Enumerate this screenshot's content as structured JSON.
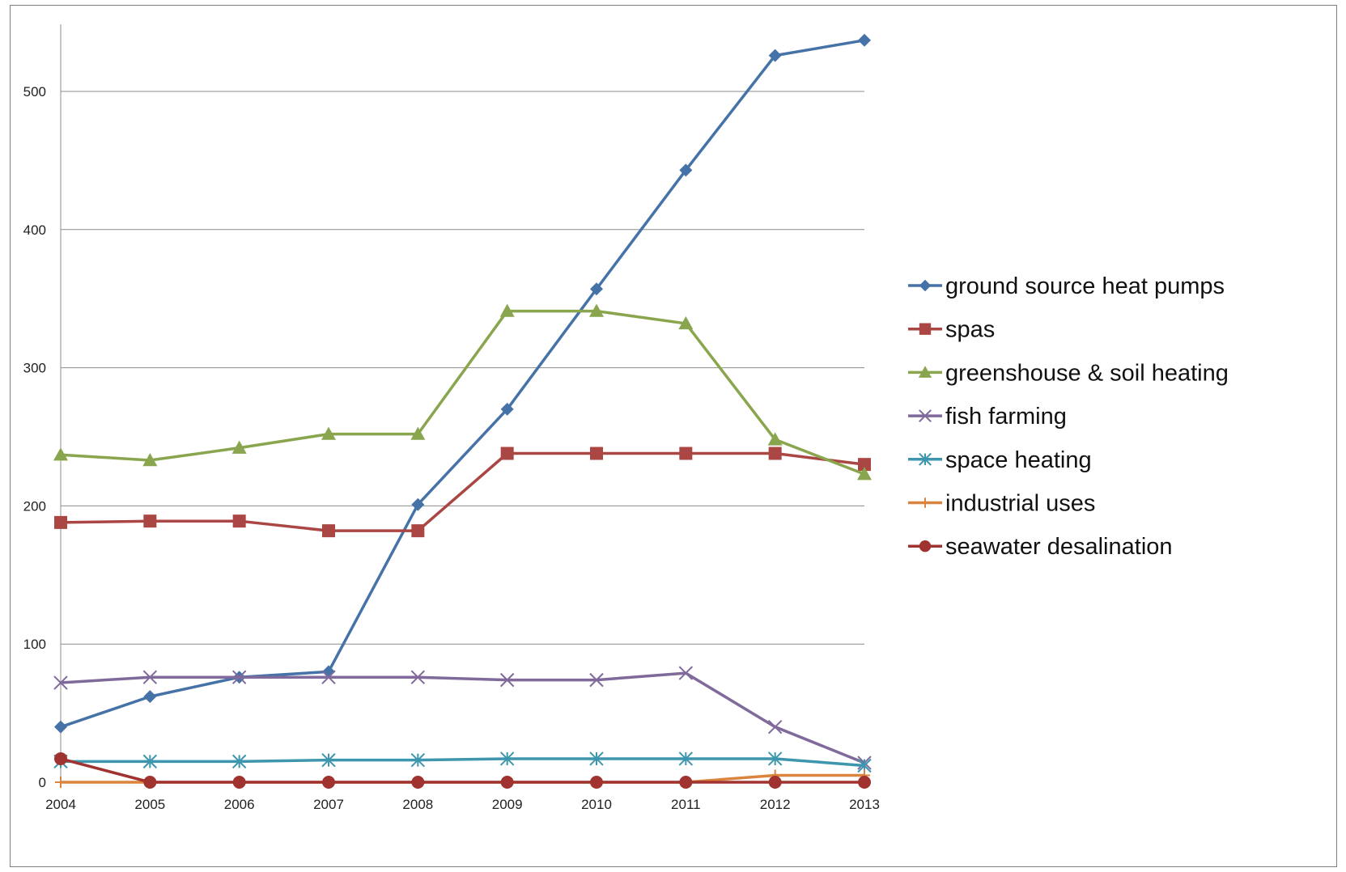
{
  "chart_data": {
    "type": "line",
    "title": "",
    "xlabel": "",
    "ylabel": "",
    "x": [
      "2004",
      "2005",
      "2006",
      "2007",
      "2008",
      "2009",
      "2010",
      "2011",
      "2012",
      "2013"
    ],
    "ylim": [
      0,
      550
    ],
    "yticks": [
      0,
      100,
      200,
      300,
      400,
      500
    ],
    "grid": "horizontal",
    "legend_position": "right",
    "series": [
      {
        "name": "ground source heat pumps",
        "color": "#4572A7",
        "marker": "diamond",
        "values": [
          40,
          62,
          76,
          80,
          201,
          270,
          357,
          443,
          526,
          537
        ]
      },
      {
        "name": "spas",
        "color": "#AA4643",
        "marker": "square",
        "values": [
          188,
          189,
          189,
          182,
          182,
          238,
          238,
          238,
          238,
          230
        ]
      },
      {
        "name": "greenshouse & soil heating",
        "color": "#89A54E",
        "marker": "triangle",
        "values": [
          237,
          233,
          242,
          252,
          252,
          341,
          341,
          332,
          248,
          223
        ]
      },
      {
        "name": "fish farming",
        "color": "#80699B",
        "marker": "x",
        "values": [
          72,
          76,
          76,
          76,
          76,
          74,
          74,
          79,
          40,
          14
        ]
      },
      {
        "name": "space heating",
        "color": "#3D96AE",
        "marker": "star",
        "values": [
          15,
          15,
          15,
          16,
          16,
          17,
          17,
          17,
          17,
          12
        ]
      },
      {
        "name": "industrial uses",
        "color": "#DB843D",
        "marker": "plus",
        "values": [
          0,
          0,
          0,
          0,
          0,
          0,
          0,
          0,
          5,
          5
        ]
      },
      {
        "name": "seawater desalination",
        "color": "#A0332F",
        "marker": "circle",
        "values": [
          17,
          0,
          0,
          0,
          0,
          0,
          0,
          0,
          0,
          0
        ]
      }
    ]
  }
}
